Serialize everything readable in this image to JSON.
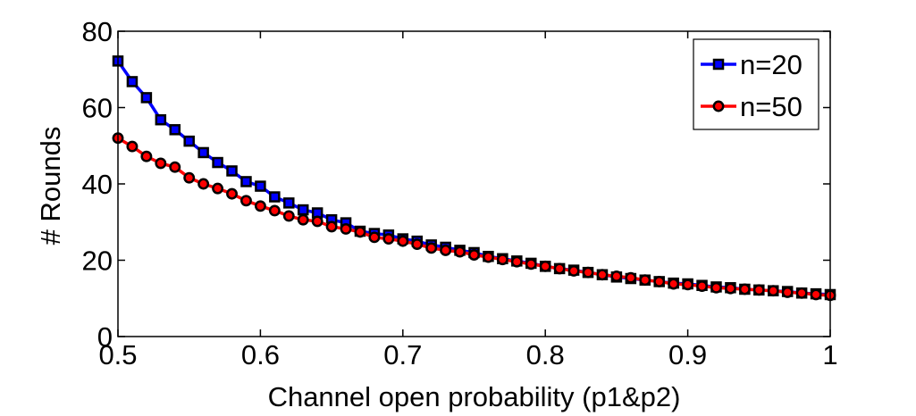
{
  "chart_data": {
    "type": "line",
    "title": "",
    "xlabel": "Channel open probability (p1&p2)",
    "ylabel": "# Rounds",
    "xlim": [
      0.5,
      1.0
    ],
    "ylim": [
      0,
      80
    ],
    "xticks": [
      0.5,
      0.6,
      0.7,
      0.8,
      0.9,
      1.0
    ],
    "xtick_labels": [
      "0.5",
      "0.6",
      "0.7",
      "0.8",
      "0.9",
      "1"
    ],
    "yticks": [
      0,
      20,
      40,
      60,
      80
    ],
    "ytick_labels": [
      "0",
      "20",
      "40",
      "60",
      "80"
    ],
    "grid": false,
    "legend_position": "top-right",
    "x": [
      0.5,
      0.51,
      0.52,
      0.53,
      0.54,
      0.55,
      0.56,
      0.57,
      0.58,
      0.59,
      0.6,
      0.61,
      0.62,
      0.63,
      0.64,
      0.65,
      0.66,
      0.67,
      0.68,
      0.69,
      0.7,
      0.71,
      0.72,
      0.73,
      0.74,
      0.75,
      0.76,
      0.77,
      0.78,
      0.79,
      0.8,
      0.81,
      0.82,
      0.83,
      0.84,
      0.85,
      0.86,
      0.87,
      0.88,
      0.89,
      0.9,
      0.91,
      0.92,
      0.93,
      0.94,
      0.95,
      0.96,
      0.97,
      0.98,
      0.99,
      1.0
    ],
    "series": [
      {
        "name": "n=20",
        "color": "#0000ff",
        "marker": "square",
        "values": [
          72.2,
          66.8,
          62.6,
          56.8,
          54.2,
          51.2,
          48.2,
          45.6,
          43.4,
          40.6,
          39.4,
          36.6,
          35.0,
          33.2,
          32.4,
          30.6,
          29.8,
          27.6,
          27.0,
          26.6,
          25.6,
          25.0,
          24.0,
          23.4,
          22.6,
          22.0,
          21.0,
          20.4,
          19.8,
          19.2,
          18.4,
          17.8,
          17.4,
          16.8,
          16.2,
          15.6,
          15.2,
          14.8,
          14.4,
          14.0,
          13.8,
          13.4,
          13.0,
          12.8,
          12.4,
          12.2,
          12.0,
          11.8,
          11.4,
          11.2,
          11.0
        ]
      },
      {
        "name": "n=50",
        "color": "#ff0000",
        "marker": "circle",
        "values": [
          52.0,
          49.8,
          47.2,
          45.4,
          44.4,
          41.6,
          40.0,
          38.8,
          37.4,
          35.6,
          34.2,
          33.0,
          31.6,
          30.6,
          30.2,
          28.8,
          28.2,
          27.4,
          26.0,
          25.6,
          25.0,
          24.2,
          23.2,
          22.6,
          22.2,
          21.4,
          20.8,
          20.2,
          19.6,
          19.0,
          18.4,
          17.8,
          17.2,
          16.8,
          16.2,
          15.8,
          15.4,
          14.8,
          14.4,
          13.8,
          13.6,
          13.2,
          12.8,
          12.6,
          12.4,
          12.2,
          12.0,
          11.6,
          11.4,
          11.0,
          10.8
        ]
      }
    ]
  }
}
